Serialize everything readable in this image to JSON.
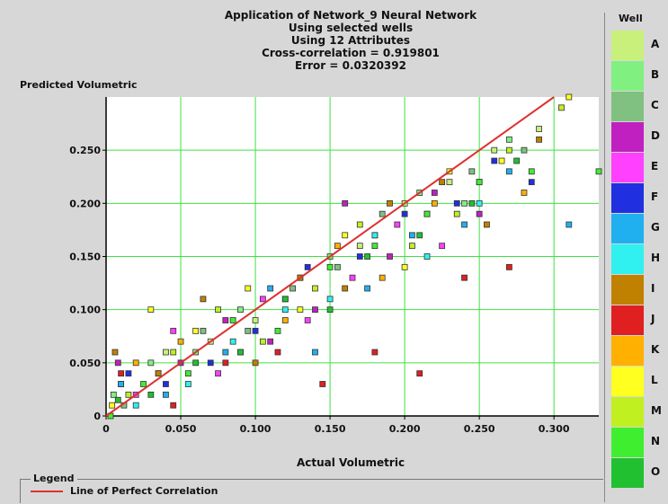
{
  "chart_data": {
    "type": "scatter",
    "title": [
      "Application of Network_9 Neural Network",
      "Using selected wells",
      "Using 12 Attributes",
      "Cross-correlation = 0.919801",
      "Error = 0.0320392"
    ],
    "xlabel": "Actual Volumetric",
    "ylabel": "Predicted Volumetric",
    "xlim": [
      0,
      0.33
    ],
    "ylim": [
      0,
      0.3
    ],
    "x_ticks": [
      "0",
      "0.050",
      "0.100",
      "0.150",
      "0.200",
      "0.250",
      "0.300"
    ],
    "y_ticks": [
      "0",
      "0.050",
      "0.100",
      "0.150",
      "0.200",
      "0.250"
    ],
    "x_tick_values": [
      0,
      0.05,
      0.1,
      0.15,
      0.2,
      0.25,
      0.3
    ],
    "y_tick_values": [
      0,
      0.05,
      0.1,
      0.15,
      0.2,
      0.25
    ],
    "grid": true,
    "reference_line": {
      "name": "Line of Perfect Correlation",
      "color": "#e03030",
      "from": [
        0,
        0
      ],
      "to": [
        0.3,
        0.3
      ]
    },
    "legend": {
      "title": "Legend",
      "entries": [
        "Line of Perfect Correlation"
      ]
    },
    "series_legend_title": "Well",
    "series": [
      {
        "name": "A",
        "color": "#c8f07a",
        "x": [
          0.01,
          0.04,
          0.07,
          0.1,
          0.13,
          0.17,
          0.2,
          0.23,
          0.26,
          0.29
        ],
        "y": [
          0.03,
          0.06,
          0.07,
          0.09,
          0.13,
          0.16,
          0.2,
          0.22,
          0.25,
          0.27
        ]
      },
      {
        "name": "B",
        "color": "#80f080",
        "x": [
          0.005,
          0.03,
          0.06,
          0.09,
          0.12,
          0.15,
          0.18,
          0.21,
          0.24,
          0.27
        ],
        "y": [
          0.02,
          0.05,
          0.06,
          0.1,
          0.11,
          0.15,
          0.17,
          0.21,
          0.2,
          0.26
        ]
      },
      {
        "name": "C",
        "color": "#80c080",
        "x": [
          0.012,
          0.035,
          0.065,
          0.095,
          0.125,
          0.155,
          0.185,
          0.215,
          0.245,
          0.28
        ],
        "y": [
          0.01,
          0.04,
          0.08,
          0.08,
          0.12,
          0.14,
          0.19,
          0.19,
          0.23,
          0.25
        ]
      },
      {
        "name": "D",
        "color": "#c020c0",
        "x": [
          0.008,
          0.05,
          0.08,
          0.11,
          0.14,
          0.16,
          0.19,
          0.22,
          0.25
        ],
        "y": [
          0.05,
          0.05,
          0.09,
          0.07,
          0.1,
          0.2,
          0.15,
          0.21,
          0.19
        ]
      },
      {
        "name": "E",
        "color": "#ff40ff",
        "x": [
          0.02,
          0.045,
          0.075,
          0.105,
          0.135,
          0.165,
          0.195,
          0.225
        ],
        "y": [
          0.02,
          0.08,
          0.04,
          0.11,
          0.09,
          0.13,
          0.18,
          0.16
        ]
      },
      {
        "name": "F",
        "color": "#2030e0",
        "x": [
          0.015,
          0.04,
          0.07,
          0.1,
          0.135,
          0.17,
          0.2,
          0.235,
          0.26,
          0.285
        ],
        "y": [
          0.04,
          0.03,
          0.05,
          0.08,
          0.14,
          0.15,
          0.19,
          0.2,
          0.24,
          0.22
        ]
      },
      {
        "name": "G",
        "color": "#20b0f0",
        "x": [
          0.01,
          0.04,
          0.08,
          0.11,
          0.14,
          0.175,
          0.205,
          0.24,
          0.27,
          0.31
        ],
        "y": [
          0.03,
          0.02,
          0.06,
          0.12,
          0.06,
          0.12,
          0.17,
          0.18,
          0.23,
          0.18
        ]
      },
      {
        "name": "H",
        "color": "#30f0f0",
        "x": [
          0.02,
          0.055,
          0.085,
          0.12,
          0.15,
          0.18,
          0.215,
          0.25
        ],
        "y": [
          0.01,
          0.03,
          0.07,
          0.1,
          0.11,
          0.17,
          0.15,
          0.2
        ]
      },
      {
        "name": "I",
        "color": "#c08000",
        "x": [
          0.006,
          0.035,
          0.065,
          0.1,
          0.13,
          0.16,
          0.19,
          0.225,
          0.255,
          0.29
        ],
        "y": [
          0.06,
          0.04,
          0.11,
          0.05,
          0.13,
          0.12,
          0.2,
          0.22,
          0.18,
          0.26
        ]
      },
      {
        "name": "J",
        "color": "#e02020",
        "x": [
          0.01,
          0.045,
          0.08,
          0.115,
          0.145,
          0.18,
          0.21,
          0.24,
          0.27
        ],
        "y": [
          0.04,
          0.01,
          0.05,
          0.06,
          0.03,
          0.06,
          0.04,
          0.13,
          0.14
        ]
      },
      {
        "name": "K",
        "color": "#ffb000",
        "x": [
          0.02,
          0.05,
          0.09,
          0.12,
          0.155,
          0.185,
          0.22,
          0.25,
          0.28
        ],
        "y": [
          0.05,
          0.07,
          0.06,
          0.09,
          0.16,
          0.13,
          0.2,
          0.22,
          0.21
        ]
      },
      {
        "name": "L",
        "color": "#ffff20",
        "x": [
          0.004,
          0.03,
          0.06,
          0.095,
          0.13,
          0.16,
          0.2,
          0.23,
          0.265,
          0.31
        ],
        "y": [
          0.01,
          0.1,
          0.08,
          0.12,
          0.1,
          0.17,
          0.14,
          0.23,
          0.24,
          0.3
        ]
      },
      {
        "name": "M",
        "color": "#c0f020",
        "x": [
          0.015,
          0.045,
          0.075,
          0.105,
          0.14,
          0.17,
          0.205,
          0.235,
          0.27,
          0.305
        ],
        "y": [
          0.02,
          0.06,
          0.1,
          0.07,
          0.12,
          0.18,
          0.16,
          0.19,
          0.25,
          0.29
        ]
      },
      {
        "name": "N",
        "color": "#40ee30",
        "x": [
          0.003,
          0.025,
          0.055,
          0.085,
          0.115,
          0.15,
          0.18,
          0.215,
          0.25,
          0.285,
          0.33
        ],
        "y": [
          0.0,
          0.03,
          0.04,
          0.09,
          0.08,
          0.14,
          0.16,
          0.19,
          0.22,
          0.23,
          0.23
        ]
      },
      {
        "name": "O",
        "color": "#20c030",
        "x": [
          0.008,
          0.03,
          0.06,
          0.09,
          0.12,
          0.15,
          0.175,
          0.21,
          0.245,
          0.275
        ],
        "y": [
          0.015,
          0.02,
          0.05,
          0.06,
          0.11,
          0.1,
          0.15,
          0.17,
          0.2,
          0.24
        ]
      }
    ]
  }
}
